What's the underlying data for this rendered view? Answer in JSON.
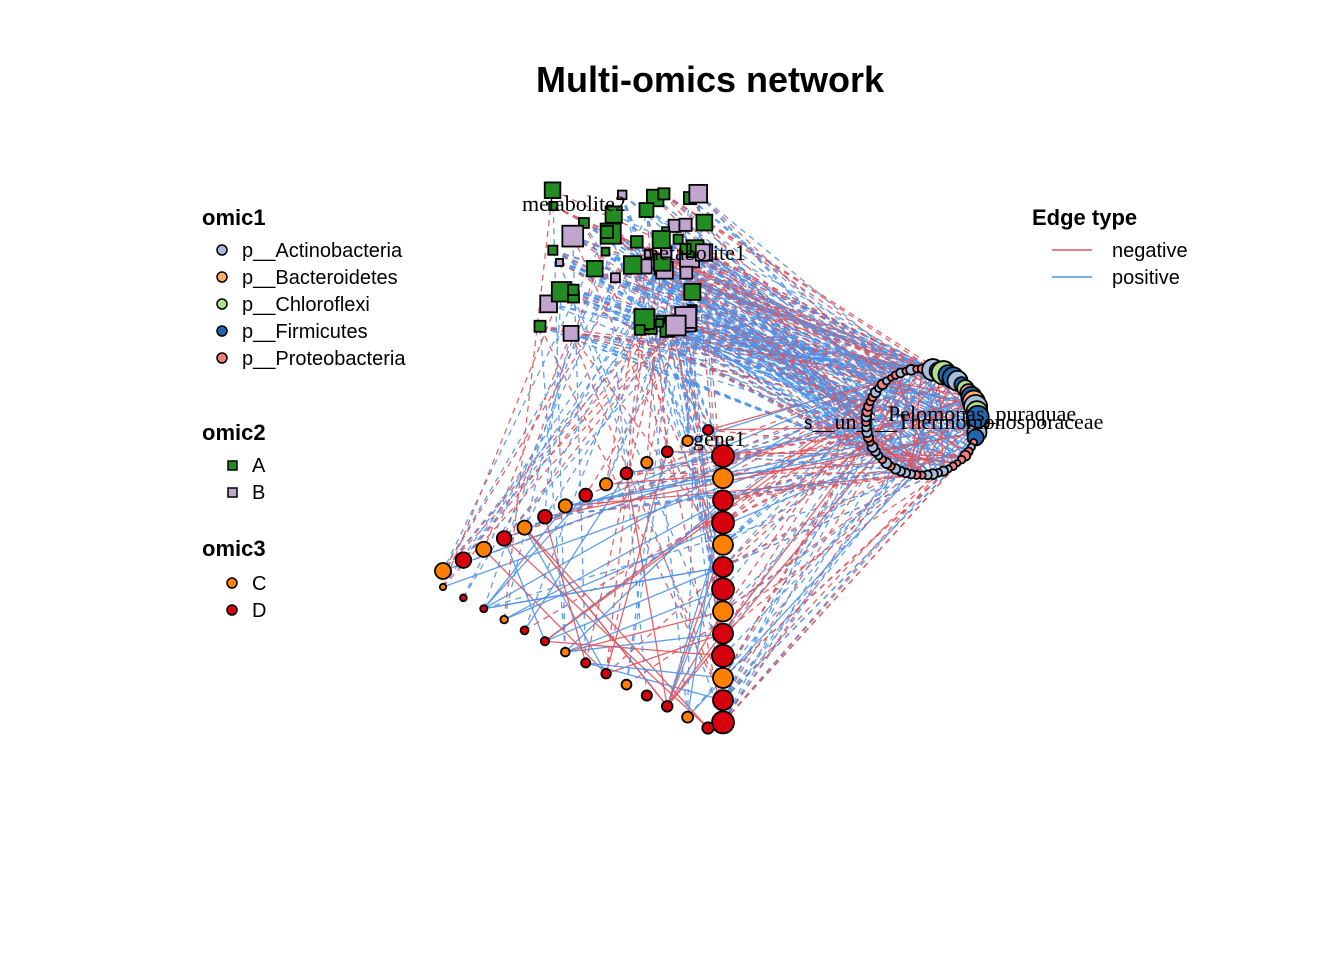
{
  "title": "Multi-omics network",
  "legends": {
    "omic1": {
      "title": "omic1",
      "items": [
        {
          "label": "p__Actinobacteria",
          "color": "#a6bddb"
        },
        {
          "label": "p__Bacteroidetes",
          "color": "#fdae6b"
        },
        {
          "label": "p__Chloroflexi",
          "color": "#b2df8a"
        },
        {
          "label": "p__Firmicutes",
          "color": "#2166ac"
        },
        {
          "label": "p__Proteobacteria",
          "color": "#f08080"
        }
      ]
    },
    "omic2": {
      "title": "omic2",
      "items": [
        {
          "label": "A",
          "color": "#228b22"
        },
        {
          "label": "B",
          "color": "#c2a5cf"
        }
      ]
    },
    "omic3": {
      "title": "omic3",
      "items": [
        {
          "label": "C",
          "color": "#ff7f00"
        },
        {
          "label": "D",
          "color": "#d7000f"
        }
      ]
    },
    "edge": {
      "title": "Edge type",
      "items": [
        {
          "label": "negative",
          "color": "#e0525b"
        },
        {
          "label": "positive",
          "color": "#4f94e8"
        }
      ]
    }
  },
  "node_labels": {
    "metabolite2": "metabolite2",
    "metabolite1": "metabolite1",
    "gene1": "gene1",
    "s_un": "s__un_f__Thermomonosporaceae",
    "peromonas": "Pelomonas_puraquae"
  }
}
